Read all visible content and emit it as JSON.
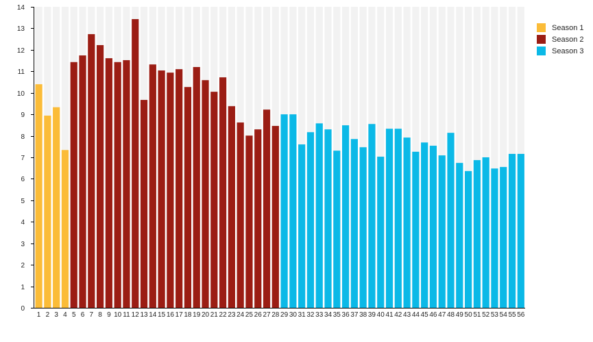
{
  "chart_data": {
    "type": "bar",
    "title": "",
    "xlabel": "",
    "ylabel": "",
    "ylim": [
      0,
      14
    ],
    "yticks": [
      0,
      1,
      2,
      3,
      4,
      5,
      6,
      7,
      8,
      9,
      10,
      11,
      12,
      13,
      14
    ],
    "grid": false,
    "background_stripes": true,
    "legend_position": "top-right",
    "categories": [
      "1",
      "2",
      "3",
      "4",
      "5",
      "6",
      "7",
      "8",
      "9",
      "10",
      "11",
      "12",
      "13",
      "14",
      "15",
      "16",
      "17",
      "18",
      "19",
      "20",
      "21",
      "22",
      "23",
      "24",
      "25",
      "26",
      "27",
      "28",
      "29",
      "30",
      "31",
      "32",
      "33",
      "34",
      "35",
      "36",
      "37",
      "38",
      "39",
      "40",
      "41",
      "42",
      "43",
      "44",
      "45",
      "46",
      "47",
      "48",
      "49",
      "50",
      "51",
      "52",
      "53",
      "54",
      "55",
      "56"
    ],
    "values": [
      10.4,
      8.94,
      9.33,
      7.34,
      11.43,
      11.74,
      12.73,
      12.22,
      11.61,
      11.43,
      11.52,
      13.43,
      9.67,
      11.32,
      11.04,
      10.94,
      11.1,
      10.27,
      11.2,
      10.59,
      10.05,
      10.72,
      9.38,
      8.62,
      8.01,
      8.3,
      9.22,
      8.46,
      9.0,
      9.0,
      7.6,
      8.17,
      8.58,
      8.3,
      7.31,
      8.49,
      7.85,
      7.47,
      8.55,
      7.03,
      8.33,
      8.33,
      7.92,
      7.26,
      7.69,
      7.54,
      7.09,
      8.14,
      6.74,
      6.36,
      6.87,
      7.0,
      6.48,
      6.55,
      7.16,
      7.16
    ],
    "series": [
      {
        "name": "Season 1",
        "color": "#FBBC38",
        "from": 1,
        "to": 4
      },
      {
        "name": "Season 2",
        "color": "#9B1D14",
        "from": 5,
        "to": 28
      },
      {
        "name": "Season 3",
        "color": "#0BB9E7",
        "from": 29,
        "to": 56
      }
    ]
  }
}
